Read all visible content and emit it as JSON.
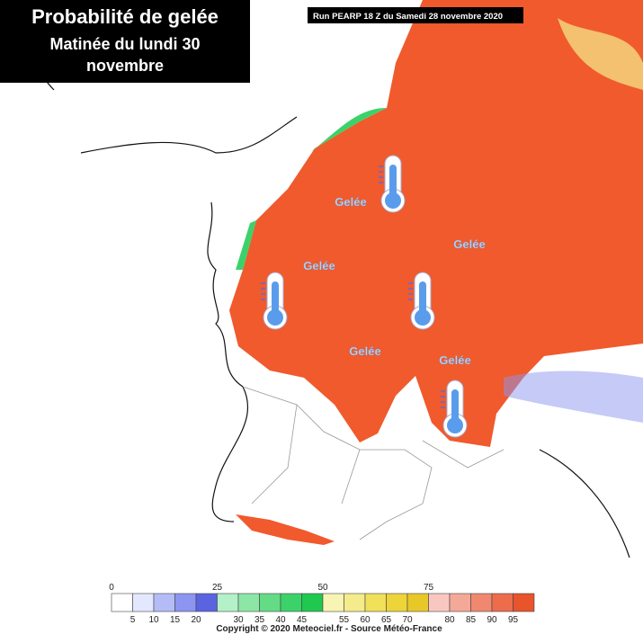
{
  "header": {
    "title_lines": [
      "Probabilité de gelée",
      "Matinée du lundi 30",
      "novembre"
    ],
    "run": "Run PEARP 18 Z du Samedi 28 novembre 2020"
  },
  "labels": [
    "Gelée",
    "Gelée",
    "Gelée",
    "Gelée",
    "Gelée"
  ],
  "legend": {
    "top_labels": [
      "0",
      "25",
      "50",
      "75"
    ],
    "bottom_labels": [
      "5",
      "10",
      "15",
      "20",
      "30",
      "35",
      "40",
      "45",
      "55",
      "60",
      "65",
      "70",
      "80",
      "85",
      "90",
      "95"
    ],
    "colors": [
      "#ffffff",
      "#e4e8ff",
      "#b4bcf8",
      "#8c96f0",
      "#5a64e0",
      "#b4f0c8",
      "#8ce6a6",
      "#64dc86",
      "#3cd26a",
      "#20c850",
      "#f8f4b4",
      "#f4ec8c",
      "#f0e05a",
      "#ecd43a",
      "#e8c828",
      "#f8c8c0",
      "#f4a898",
      "#f08870",
      "#ec6c4c",
      "#e8542c"
    ]
  },
  "footer": "Copyright © 2020 Meteociel.fr - Source Météo-France"
}
